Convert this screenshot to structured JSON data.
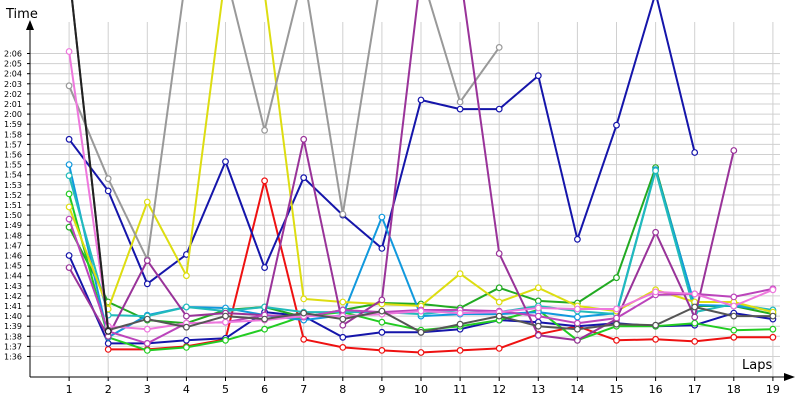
{
  "chart_data": {
    "type": "line",
    "ylabel": "Time",
    "xlabel": "Laps",
    "grid": true,
    "legend": "none",
    "xlim": [
      0,
      19.6
    ],
    "ylim_seconds": [
      94.5,
      127.5
    ],
    "x_ticks": [
      1,
      2,
      3,
      4,
      5,
      6,
      7,
      8,
      9,
      10,
      11,
      12,
      13,
      14,
      15,
      16,
      17,
      18,
      19
    ],
    "y_tick_labels": [
      "1:36",
      "1:37",
      "1:38",
      "1:39",
      "1:40",
      "1:41",
      "1:42",
      "1:43",
      "1:44",
      "1:45",
      "1:46",
      "1:47",
      "1:48",
      "1:49",
      "1:50",
      "1:51",
      "1:52",
      "1:53",
      "1:54",
      "1:55",
      "1:56",
      "1:57",
      "1:58",
      "1:59",
      "2:00",
      "2:01",
      "2:02",
      "2:03",
      "2:04",
      "2:05",
      "2:06"
    ],
    "series": [
      {
        "color": "#ee1111",
        "x": [
          2,
          3,
          4,
          5,
          6,
          7,
          8,
          9,
          10,
          11,
          12,
          13,
          14,
          15,
          16,
          17,
          18,
          19
        ],
        "y": [
          "1:36.7",
          "1:36.7",
          "1:37.0",
          "1:37.7",
          "1:53.4",
          "1:37.7",
          "1:36.9",
          "1:36.6",
          "1:36.4",
          "1:36.6",
          "1:36.8",
          "1:38.2",
          "1:39.0",
          "1:37.6",
          "1:37.7",
          "1:37.5",
          "1:37.9",
          "1:37.9"
        ]
      },
      {
        "color": "#1515aa",
        "x": [
          1,
          2,
          3,
          4,
          5,
          6,
          7,
          8,
          9,
          10,
          11,
          12,
          13,
          14,
          15,
          16,
          17,
          18,
          19
        ],
        "y": [
          "1:46.0",
          "1:37.3",
          "1:37.3",
          "1:37.6",
          "1:37.8",
          "1:40.4",
          "1:40.0",
          "1:37.9",
          "1:38.4",
          "1:38.4",
          "1:38.7",
          "1:39.6",
          "1:39.4",
          "1:39.0",
          "1:39.3",
          "1:39.0",
          "1:39.1",
          "1:40.3",
          "1:39.7"
        ]
      },
      {
        "color": "#1515aa",
        "x": [
          1,
          2,
          3,
          4,
          5,
          6,
          7,
          8,
          9,
          10,
          11,
          12,
          13,
          14,
          15,
          16,
          17
        ],
        "y": [
          "1:57.5",
          "1:52.4",
          "1:43.2",
          "1:46.1",
          "1:55.3",
          "1:44.8",
          "1:53.7",
          "1:50.0",
          "1:46.7",
          "2:01.4",
          "2:00.5",
          "2:00.5",
          "2:03.8",
          "1:47.6",
          "1:58.9",
          "2:12.0",
          "1:56.2"
        ]
      },
      {
        "color": "#22aa22",
        "x": [
          1,
          2,
          3,
          4,
          5,
          6,
          7,
          8,
          9,
          10,
          11,
          12,
          13,
          14,
          15,
          16,
          17,
          18,
          19
        ],
        "y": [
          "1:48.8",
          "1:41.4",
          "1:39.6",
          "1:39.3",
          "1:40.6",
          "1:40.9",
          "1:39.9",
          "1:40.6",
          "1:41.3",
          "1:41.2",
          "1:40.8",
          "1:42.8",
          "1:41.5",
          "1:41.3",
          "1:43.8",
          "1:54.7",
          "1:41.0",
          "1:41.0",
          "1:40.2"
        ]
      },
      {
        "color": "#22cc22",
        "x": [
          1,
          2,
          3,
          4,
          5,
          6,
          7,
          8,
          9,
          10,
          11,
          12,
          13,
          14,
          15,
          16,
          17,
          18,
          19
        ],
        "y": [
          "1:52.1",
          "1:37.9",
          "1:36.6",
          "1:36.9",
          "1:37.6",
          "1:38.7",
          "1:40.0",
          "1:40.4",
          "1:39.4",
          "1:38.6",
          "1:39.0",
          "1:39.6",
          "1:40.6",
          "1:37.6",
          "1:39.0",
          "1:39.0",
          "1:39.3",
          "1:38.6",
          "1:38.7"
        ]
      },
      {
        "color": "#1199dd",
        "x": [
          1,
          2,
          3,
          4,
          5,
          6,
          7,
          8,
          9,
          10,
          11,
          12,
          13,
          14,
          15,
          16,
          17,
          18,
          19
        ],
        "y": [
          "1:55.0",
          "1:37.9",
          "1:40.1",
          "1:40.9",
          "1:40.8",
          "1:40.1",
          "1:39.6",
          "1:40.1",
          "1:49.8",
          "1:40.0",
          "1:40.2",
          "1:40.2",
          "1:40.4",
          "1:39.9",
          "1:40.3",
          "1:54.5",
          "1:41.1",
          "1:41.0",
          "1:40.6"
        ]
      },
      {
        "color": "#22bbbb",
        "x": [
          1,
          2,
          3,
          4,
          5,
          6,
          7,
          8,
          9,
          10,
          11,
          12,
          13,
          14,
          15,
          16,
          17,
          18,
          19
        ],
        "y": [
          "1:53.9",
          "1:40.1",
          "1:40.0",
          "1:40.9",
          "1:40.5",
          "1:40.9",
          "1:40.4",
          "1:40.4",
          "1:40.4",
          "1:40.2",
          "1:40.6",
          "1:40.4",
          "1:41.0",
          "1:40.5",
          "1:40.2",
          "1:54.4",
          "1:40.4",
          "1:41.2",
          "1:40.6"
        ]
      },
      {
        "color": "#dddd11",
        "x": [
          1,
          2,
          3,
          4,
          5,
          6,
          7,
          8,
          9,
          10,
          11,
          12,
          13,
          14,
          15,
          16,
          17,
          18,
          19
        ],
        "y": [
          "1:50.8",
          "1:40.7",
          "1:51.3",
          "1:44.0",
          "2:14.0",
          "2:12.0",
          "1:41.7",
          "1:41.4",
          "1:41.2",
          "1:41.0",
          "1:44.2",
          "1:41.4",
          "1:42.8",
          "1:41.0",
          "1:40.5",
          "1:42.6",
          "1:41.4",
          "1:41.4",
          "1:40.4"
        ]
      },
      {
        "color": "#999999",
        "x": [
          1,
          2,
          3,
          4,
          5,
          6,
          7,
          8,
          9,
          10,
          11,
          12
        ],
        "y": [
          "2:02.8",
          "1:53.6",
          "1:45.6",
          "2:14.0",
          "2:14.0",
          "1:58.4",
          "2:14.0",
          "1:50.1",
          "2:14.0",
          "2:14.0",
          "2:01.2",
          "2:06.6"
        ]
      },
      {
        "color": "#993399",
        "x": [
          1,
          2,
          3,
          4,
          5,
          6,
          7,
          8,
          9,
          10,
          11,
          12,
          13,
          14,
          15,
          16,
          17,
          18
        ],
        "y": [
          "1:44.8",
          "1:38.0",
          "1:45.5",
          "1:40.0",
          "1:40.3",
          "1:40.1",
          "1:57.5",
          "1:39.1",
          "1:41.6",
          "2:14.0",
          "2:14.0",
          "1:46.2",
          "1:38.1",
          "1:37.6",
          "1:39.7",
          "1:48.3",
          "1:39.9",
          "1:56.4"
        ]
      },
      {
        "color": "#bb44bb",
        "x": [
          1,
          2,
          3,
          4,
          5,
          6,
          7,
          8,
          9,
          10,
          11,
          12,
          13,
          14,
          15,
          16,
          17,
          18,
          19
        ],
        "y": [
          "1:49.6",
          "1:38.5",
          "1:37.3",
          "1:39.3",
          "1:39.4",
          "1:40.1",
          "1:39.9",
          "1:40.6",
          "1:40.4",
          "1:40.6",
          "1:40.6",
          "1:40.5",
          "1:40.0",
          "1:39.3",
          "1:39.8",
          "1:42.1",
          "1:42.2",
          "1:41.9",
          "1:42.7"
        ]
      },
      {
        "color": "#ee77dd",
        "x": [
          1,
          2,
          3,
          4,
          5,
          6,
          7,
          8,
          9,
          10,
          11,
          12,
          13,
          14,
          15,
          16,
          17,
          18,
          19
        ],
        "y": [
          "2:06.2",
          "1:39.0",
          "1:38.7",
          "1:39.3",
          "1:39.4",
          "1:39.6",
          "1:40.0",
          "1:40.0",
          "1:40.2",
          "1:40.5",
          "1:40.3",
          "1:40.4",
          "1:40.8",
          "1:40.7",
          "1:40.7",
          "1:42.4",
          "1:42.2",
          "1:41.0",
          "1:42.6"
        ]
      },
      {
        "color": "#555555",
        "x": [
          1,
          2,
          3,
          4,
          5,
          6,
          7,
          8,
          9,
          10,
          11,
          12,
          13,
          14,
          15,
          16,
          17,
          18,
          19
        ],
        "y": [
          "2:14.0",
          "1:38.6",
          "1:39.7",
          "1:38.9",
          "1:40.0",
          "1:39.7",
          "1:40.3",
          "1:39.7",
          "1:40.5",
          "1:38.4",
          "1:39.2",
          "1:40.0",
          "1:39.0",
          "1:38.7",
          "1:39.2",
          "1:39.1",
          "1:40.9",
          "1:40.0",
          "1:40.0"
        ]
      },
      {
        "color": "#222222",
        "x": [
          1,
          2
        ],
        "y": [
          "2:14.0",
          "1:38.5"
        ]
      }
    ]
  }
}
